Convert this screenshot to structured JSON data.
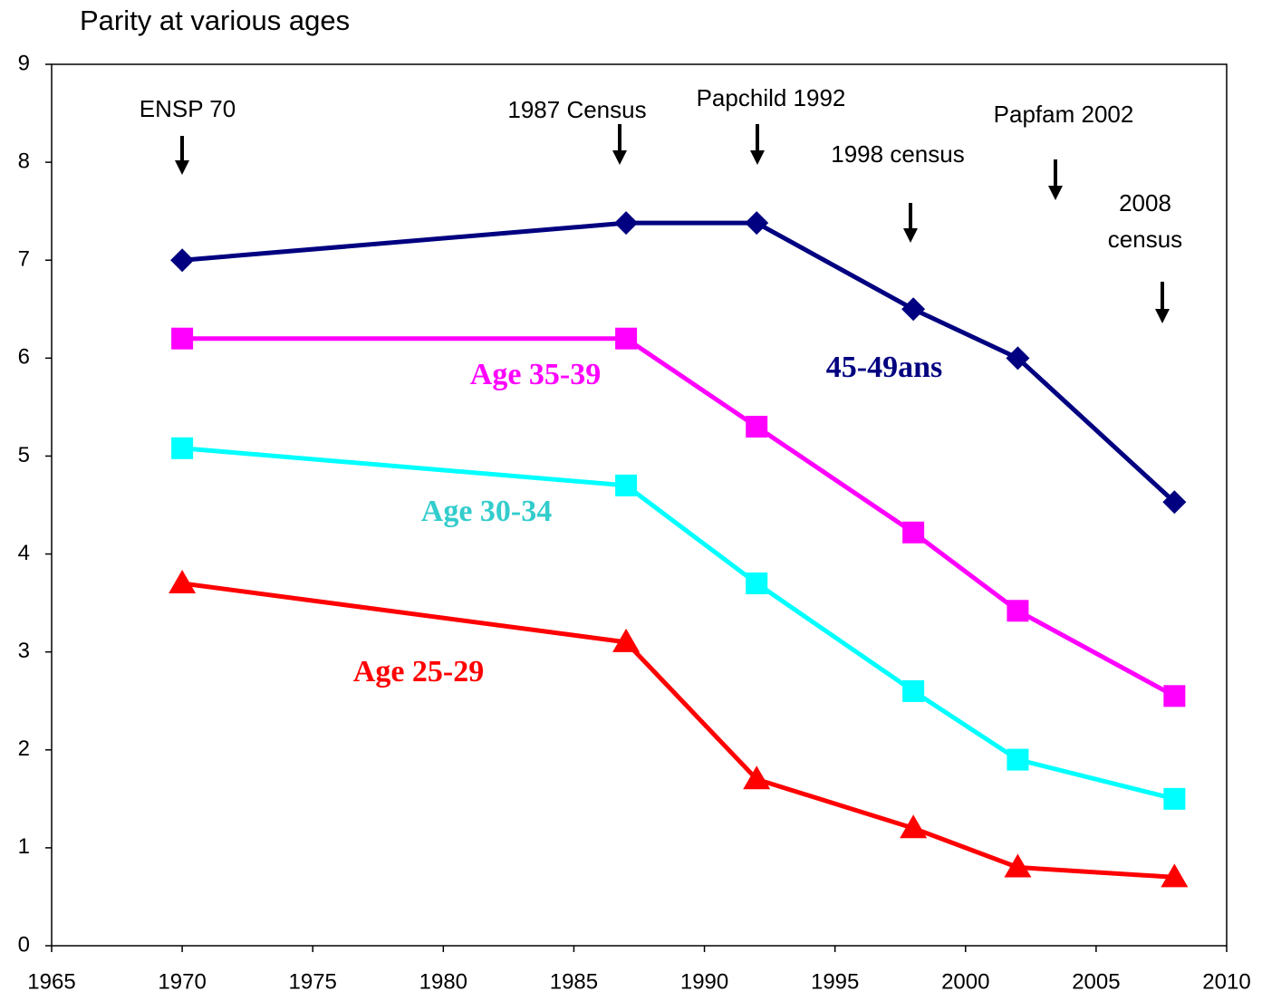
{
  "chart_data": {
    "type": "line",
    "title": "Parity at various ages",
    "x": [
      1970,
      1987,
      1992,
      1998,
      2002,
      2008
    ],
    "series": [
      {
        "name": "45-49ans",
        "color": "#000080",
        "marker": "diamond",
        "values": [
          7.0,
          7.38,
          7.38,
          6.5,
          6.0,
          4.53
        ]
      },
      {
        "name": "Age 35-39",
        "color": "#ff00ff",
        "marker": "square",
        "values": [
          6.2,
          6.2,
          5.3,
          4.22,
          3.42,
          2.55
        ]
      },
      {
        "name": "Age 30-34",
        "color": "#00ffff",
        "marker": "square",
        "values": [
          5.08,
          4.7,
          3.7,
          2.6,
          1.9,
          1.5
        ]
      },
      {
        "name": "Age 25-29",
        "color": "#ff0000",
        "marker": "triangle",
        "values": [
          3.7,
          3.1,
          1.7,
          1.2,
          0.8,
          0.7
        ]
      }
    ],
    "annotations": [
      {
        "text": [
          "ENSP 70"
        ]
      },
      {
        "text": [
          "1987 Census"
        ]
      },
      {
        "text": [
          "Papchild 1992"
        ]
      },
      {
        "text": [
          "1998 census"
        ]
      },
      {
        "text": [
          "Papfam 2002"
        ]
      },
      {
        "text": [
          "2008",
          "census"
        ]
      }
    ],
    "xlim": [
      1965,
      2010
    ],
    "xticks": [
      1965,
      1970,
      1975,
      1980,
      1985,
      1990,
      1995,
      2000,
      2005,
      2010
    ],
    "ylim": [
      0,
      9
    ],
    "yticks": [
      0,
      1,
      2,
      3,
      4,
      5,
      6,
      7,
      8,
      9
    ],
    "grid": false
  }
}
